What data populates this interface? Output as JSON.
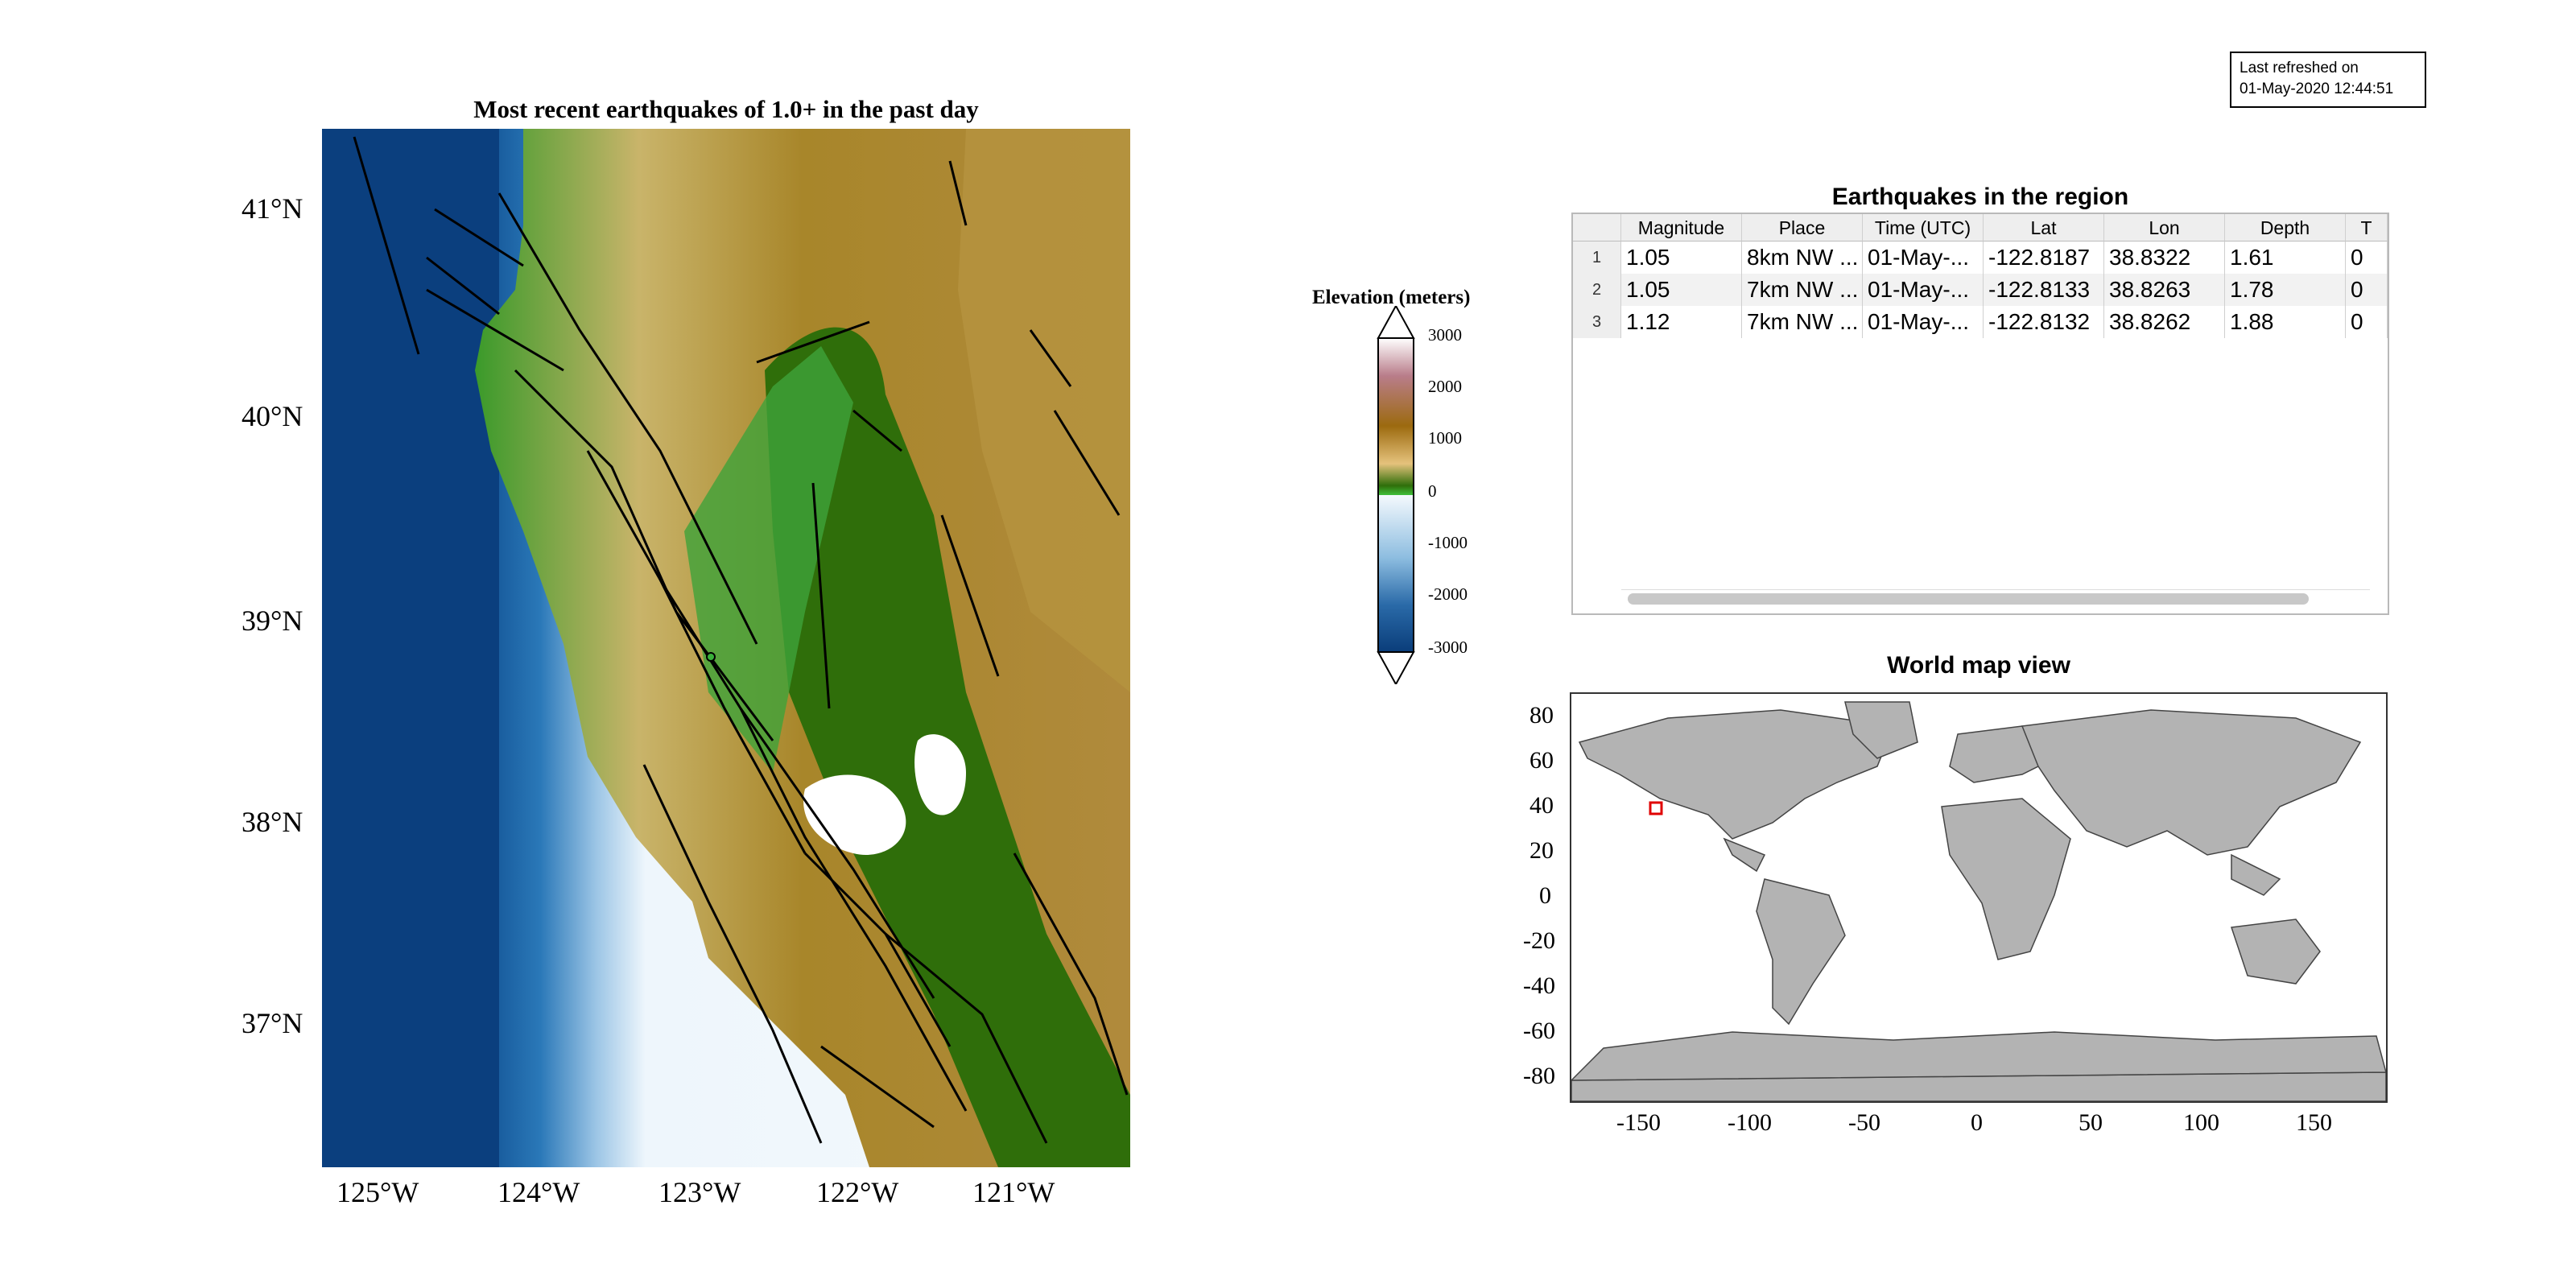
{
  "regional_map": {
    "title": "Most recent earthquakes of 1.0+ in the past day",
    "lat_labels": [
      "41°N",
      "40°N",
      "39°N",
      "38°N",
      "37°N"
    ],
    "lon_labels": [
      "125°W",
      "124°W",
      "123°W",
      "122°W",
      "121°W"
    ]
  },
  "colorbar": {
    "title": "Elevation (meters)",
    "ticks": [
      "3000",
      "2000",
      "1000",
      "0",
      "-1000",
      "-2000",
      "-3000"
    ],
    "colors": {
      "deep_ocean": "#0a3d7a",
      "shallow_ocean": "#e9f3fb",
      "lowland": "#2f6e0a",
      "midland": "#e5c27c",
      "highland": "#9c6a0f",
      "peak": "#b97d8a"
    }
  },
  "refresh": {
    "line1": "Last refreshed on",
    "line2": "01-May-2020 12:44:51"
  },
  "table": {
    "title": "Earthquakes in the region",
    "headers": [
      "Magnitude",
      "Place",
      "Time (UTC)",
      "Lat",
      "Lon",
      "Depth",
      "T"
    ],
    "rows": [
      {
        "num": "1",
        "magnitude": "1.05",
        "place": "8km NW ...",
        "time": "01-May-...",
        "lat": "-122.8187",
        "lon": "38.8322",
        "depth": "1.61",
        "t": "0"
      },
      {
        "num": "2",
        "magnitude": "1.05",
        "place": "7km NW ...",
        "time": "01-May-...",
        "lat": "-122.8133",
        "lon": "38.8263",
        "depth": "1.78",
        "t": "0"
      },
      {
        "num": "3",
        "magnitude": "1.12",
        "place": "7km NW ...",
        "time": "01-May-...",
        "lat": "-122.8132",
        "lon": "38.8262",
        "depth": "1.88",
        "t": "0"
      }
    ]
  },
  "world_map": {
    "title": "World map view",
    "y_labels": [
      "80",
      "60",
      "40",
      "20",
      "0",
      "-20",
      "-40",
      "-60",
      "-80"
    ],
    "x_labels": [
      "-150",
      "-100",
      "-50",
      "0",
      "50",
      "100",
      "150"
    ],
    "land_color": "#b3b3b3",
    "marker_color": "#e00000"
  }
}
